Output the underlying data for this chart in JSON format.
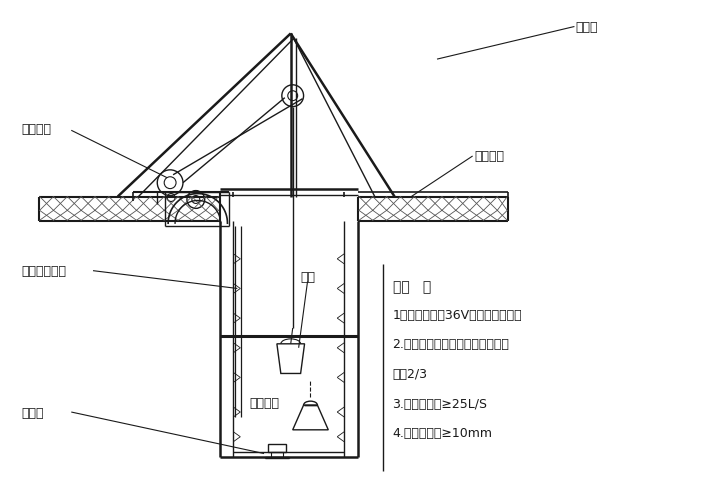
{
  "bg_color": "#ffffff",
  "line_color": "#1a1a1a",
  "labels": {
    "steel_tube": "钢架管",
    "brick_well": "砖砌井圈",
    "electric_hoist": "电动葫芦",
    "fan_duct": "风机及送风管",
    "bucket": "吊桶",
    "light": "照明灯具",
    "pump": "潜水泵"
  },
  "notes_title": "说明   ：",
  "notes": [
    "1：孔内照明为36V低电压电灯灯泡",
    "2.吊桶为皮桶，一次装土量不超过",
    "容量2/3",
    "3.孔内送风量≥25L/S",
    "4.钢丝绳直径≥10mm"
  ]
}
